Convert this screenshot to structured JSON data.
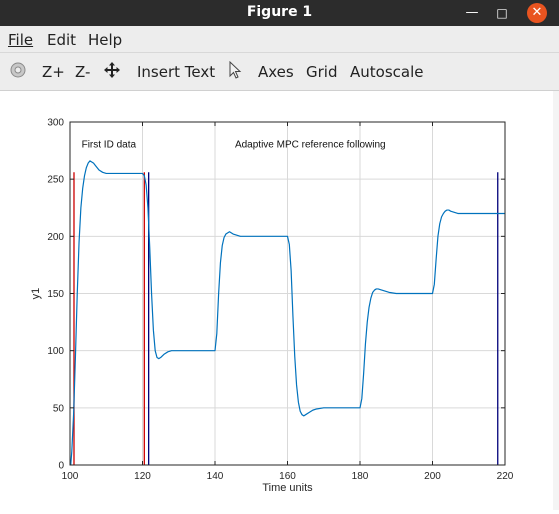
{
  "window": {
    "title": "Figure 1"
  },
  "menu": {
    "file": "File",
    "edit": "Edit",
    "help": "Help"
  },
  "toolbar": {
    "zoom_in": "Z+",
    "zoom_out": "Z-",
    "insert_text": "Insert Text",
    "axes": "Axes",
    "grid": "Grid",
    "autoscale": "Autoscale"
  },
  "icons": [
    "rotate-icon",
    "pan-icon",
    "pointer-icon",
    "minimize-icon",
    "maximize-icon",
    "close-icon"
  ],
  "colors": {
    "line": "#0072bd",
    "ref_marker": "#cc0000",
    "end_marker": "#00007a",
    "close": "#e95420"
  },
  "chart_data": {
    "type": "line",
    "xlabel": "Time units",
    "ylabel": "y1",
    "xlim": [
      100,
      220
    ],
    "ylim": [
      0,
      300
    ],
    "xticks": [
      100,
      120,
      140,
      160,
      180,
      200,
      220
    ],
    "yticks": [
      0,
      50,
      100,
      150,
      200,
      250,
      300
    ],
    "grid": true,
    "annotations": [
      {
        "text": "First ID data",
        "x": 103.2,
        "y": 281
      },
      {
        "text": "Adaptive MPC reference following",
        "x": 145.5,
        "y": 281
      }
    ],
    "vlines": [
      {
        "x": 101.1,
        "ymin": 0,
        "ymax": 256,
        "color": "#cc0000"
      },
      {
        "x": 120.5,
        "ymin": 0,
        "ymax": 256,
        "color": "#cc0000"
      },
      {
        "x": 121.7,
        "ymin": 0,
        "ymax": 256,
        "color": "#00007a"
      },
      {
        "x": 218.0,
        "ymin": 0,
        "ymax": 256,
        "color": "#00007a"
      }
    ],
    "series": [
      {
        "x": [
          100.2,
          100.5,
          101.0,
          101.5,
          102.0,
          102.5,
          103.0,
          103.5,
          104.0,
          104.5,
          105.0,
          105.5,
          106.0,
          106.5,
          107.0,
          108.0,
          109.0,
          110.0,
          111.0,
          112.0,
          113.0,
          115.0,
          117.0,
          119.0,
          120.0,
          120.5,
          121.0,
          121.5,
          122.0,
          122.5,
          123.0,
          123.5,
          124.0,
          124.5,
          125.0,
          126.0,
          127.0,
          128.0,
          130.0,
          132.0,
          135.0,
          138.0,
          140.0,
          140.5,
          141.0,
          141.5,
          142.0,
          142.5,
          143.0,
          143.5,
          144.0,
          144.5,
          145.0,
          146.0,
          147.0,
          148.0,
          150.0,
          153.0,
          157.0,
          160.0,
          160.5,
          161.0,
          161.5,
          162.0,
          162.5,
          163.0,
          163.5,
          164.0,
          164.5,
          165.0,
          166.0,
          167.0,
          168.0,
          170.0,
          173.0,
          177.0,
          180.0,
          180.5,
          181.0,
          181.5,
          182.0,
          182.5,
          183.0,
          183.5,
          184.0,
          184.5,
          185.0,
          186.0,
          187.0,
          188.0,
          190.0,
          193.0,
          197.0,
          200.0,
          200.5,
          201.0,
          201.5,
          202.0,
          202.5,
          203.0,
          203.5,
          204.0,
          204.5,
          205.0,
          206.0,
          207.0,
          208.0,
          210.0,
          213.0,
          217.0,
          220.0
        ],
        "y": [
          0,
          12,
          45,
          95,
          150,
          195,
          225,
          242,
          253,
          260,
          264,
          266,
          265,
          264,
          262,
          258,
          256,
          255,
          255,
          255,
          255,
          255,
          255,
          255,
          255,
          253,
          245,
          225,
          190,
          150,
          118,
          100,
          94,
          93,
          94,
          97,
          99,
          100,
          100,
          100,
          100,
          100,
          100,
          115,
          150,
          177,
          192,
          199,
          202,
          203,
          204,
          203,
          202,
          201,
          200,
          200,
          200,
          200,
          200,
          200,
          193,
          170,
          130,
          95,
          70,
          55,
          47,
          44,
          43,
          44,
          46,
          48,
          49,
          50,
          50,
          50,
          50,
          58,
          80,
          106,
          125,
          138,
          146,
          151,
          153,
          154,
          154,
          153,
          152,
          151,
          150,
          150,
          150,
          150,
          158,
          180,
          200,
          211,
          217,
          220,
          222,
          223,
          223,
          222,
          221,
          220,
          220,
          220,
          220,
          220,
          220
        ]
      }
    ]
  }
}
